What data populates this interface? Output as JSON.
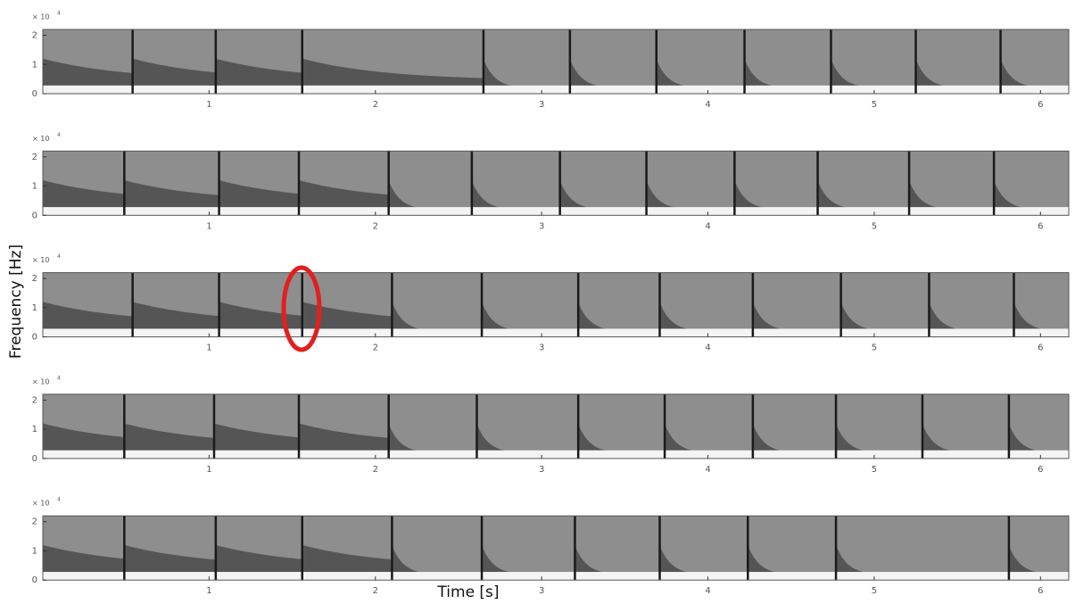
{
  "chart_data": [
    {
      "type": "spectrogram",
      "xlim": [
        0,
        6.17
      ],
      "ylim": [
        0,
        2.2
      ],
      "xticks": [
        1,
        2,
        3,
        4,
        5,
        6
      ],
      "yticks": [
        0,
        1,
        2
      ],
      "exponent_base": "× 10",
      "exponent": "4",
      "onsets": [
        0.54,
        1.04,
        1.56,
        2.65,
        3.17,
        3.69,
        4.22,
        4.74,
        5.25,
        5.76
      ]
    },
    {
      "type": "spectrogram",
      "xlim": [
        0,
        6.17
      ],
      "ylim": [
        0,
        2.2
      ],
      "xticks": [
        1,
        2,
        3,
        4,
        5,
        6
      ],
      "yticks": [
        0,
        1,
        2
      ],
      "exponent_base": "× 10",
      "exponent": "4",
      "onsets": [
        0.49,
        1.06,
        1.54,
        2.08,
        2.58,
        3.11,
        3.63,
        4.16,
        4.66,
        5.21,
        5.72
      ]
    },
    {
      "type": "spectrogram",
      "xlim": [
        0,
        6.17
      ],
      "ylim": [
        0,
        2.2
      ],
      "xticks": [
        1,
        2,
        3,
        4,
        5,
        6
      ],
      "yticks": [
        0,
        1,
        2
      ],
      "exponent_base": "× 10",
      "exponent": "4",
      "onsets": [
        0.54,
        1.06,
        1.56,
        2.1,
        2.64,
        3.22,
        3.71,
        4.27,
        4.8,
        5.33,
        5.84
      ]
    },
    {
      "type": "spectrogram",
      "xlim": [
        0,
        6.17
      ],
      "ylim": [
        0,
        2.2
      ],
      "xticks": [
        1,
        2,
        3,
        4,
        5,
        6
      ],
      "yticks": [
        0,
        1,
        2
      ],
      "exponent_base": "× 10",
      "exponent": "4",
      "onsets": [
        0.49,
        1.03,
        1.54,
        2.08,
        2.61,
        3.22,
        3.74,
        4.27,
        4.77,
        5.29,
        5.81
      ]
    },
    {
      "type": "spectrogram",
      "xlim": [
        0,
        6.17
      ],
      "ylim": [
        0,
        2.2
      ],
      "xticks": [
        1,
        2,
        3,
        4,
        5,
        6
      ],
      "yticks": [
        0,
        1,
        2
      ],
      "exponent_base": "× 10",
      "exponent": "4",
      "onsets": [
        0.49,
        1.04,
        1.56,
        2.1,
        2.64,
        3.2,
        3.71,
        4.24,
        4.77,
        5.81
      ]
    }
  ],
  "y_label": "Frequency [Hz]",
  "x_label": "Time [s]"
}
